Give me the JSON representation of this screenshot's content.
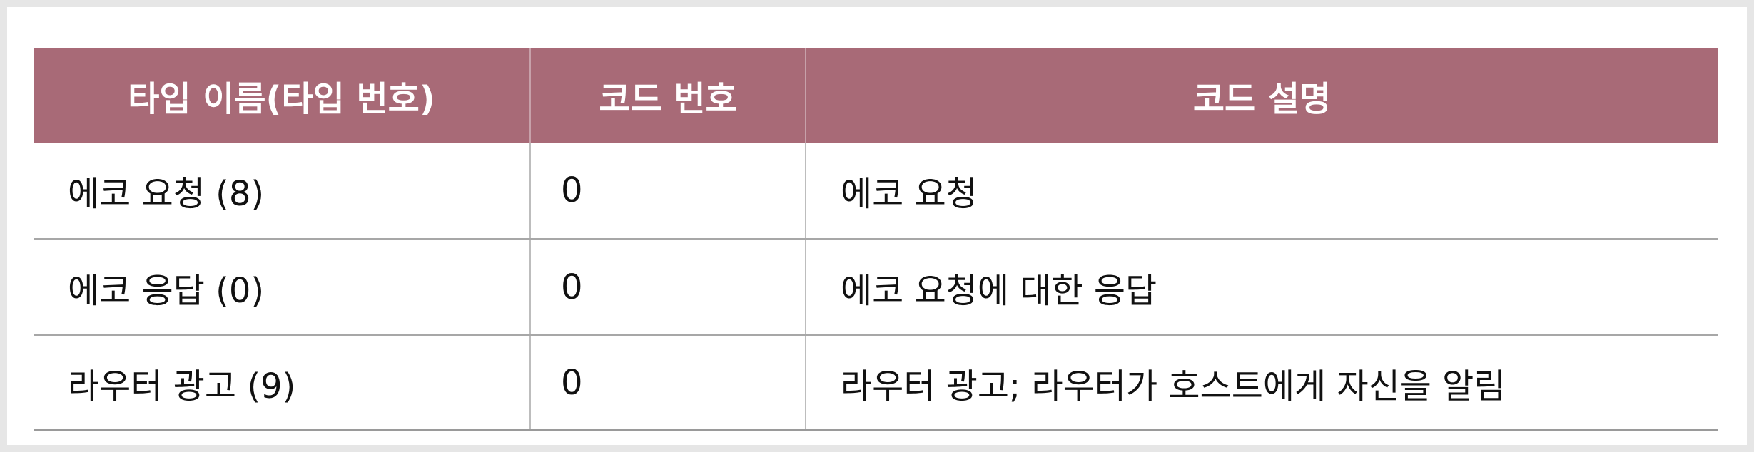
{
  "table": {
    "headers": [
      "타입 이름(타입 번호)",
      "코드 번호",
      "코드 설명"
    ],
    "rows": [
      {
        "type_name": "에코 요청 (8)",
        "code_number": "0",
        "description": "에코 요청"
      },
      {
        "type_name": "에코 응답 (0)",
        "code_number": "0",
        "description": "에코 요청에 대한 응답"
      },
      {
        "type_name": "라우터 광고 (9)",
        "code_number": "0",
        "description": "라우터 광고; 라우터가 호스트에게 자신을 알림"
      }
    ]
  },
  "colors": {
    "page_background": "#e6e6e6",
    "canvas_background": "#ffffff",
    "header_background": "#a86a77",
    "header_text": "#ffffff",
    "body_text": "#111111",
    "row_divider": "#a7a7a7",
    "column_divider": "#bdbdbd"
  }
}
